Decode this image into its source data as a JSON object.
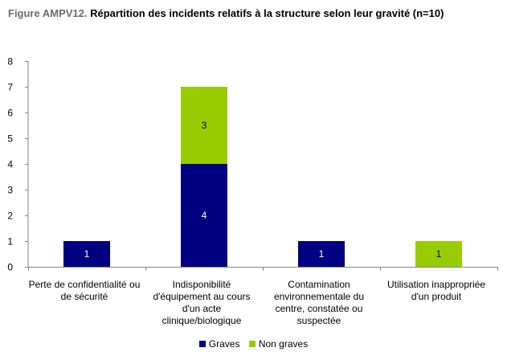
{
  "title": {
    "prefix": "Figure AMPV12.",
    "text": "Répartition des incidents relatifs à la structure selon leur gravité (n=10)"
  },
  "colors": {
    "graves": "#000080",
    "non_graves": "#99CC00"
  },
  "chart_data": {
    "type": "bar",
    "stacked": true,
    "categories": [
      "Perte de confidentialité ou de sécurité",
      "Indisponibilité d'équipement au cours d'un acte clinique/biologique",
      "Contamination environnementale  du centre, constatée ou suspectée",
      "Utilisation inappropriée d'un produit"
    ],
    "series": [
      {
        "name": "Graves",
        "values": [
          1,
          4,
          1,
          0
        ],
        "color": "#000080"
      },
      {
        "name": "Non graves",
        "values": [
          0,
          3,
          0,
          1
        ],
        "color": "#99CC00"
      }
    ],
    "ylim": [
      0,
      8
    ],
    "yticks": [
      0,
      1,
      2,
      3,
      4,
      5,
      6,
      7,
      8
    ],
    "grid": false,
    "legend": "bottom",
    "data_labels": true
  }
}
